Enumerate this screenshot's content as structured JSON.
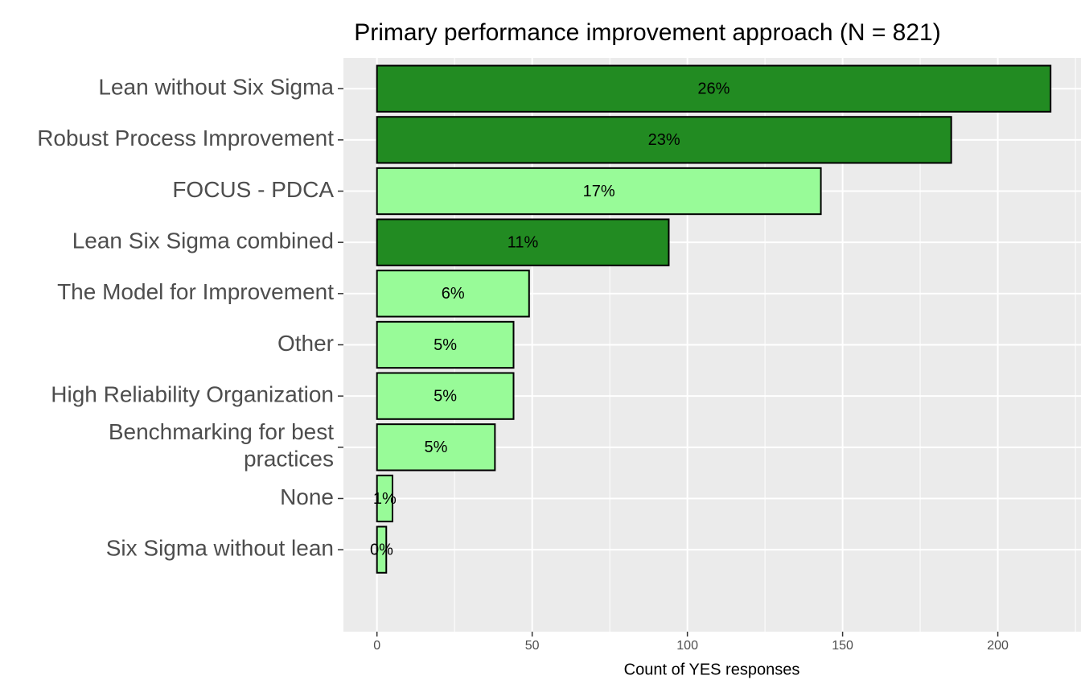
{
  "chart_data": {
    "type": "bar",
    "orientation": "horizontal",
    "title": "Primary performance improvement approach (N = 821)",
    "x_label": "Count of YES responses",
    "categories": [
      "Lean without Six Sigma",
      "Robust Process Improvement",
      "FOCUS - PDCA",
      "Lean Six Sigma combined",
      "The Model for Improvement",
      "Other",
      "High Reliability Organization",
      "Benchmarking for best\npractices",
      "None",
      "Six Sigma without lean"
    ],
    "values": [
      217,
      185,
      143,
      94,
      49,
      44,
      44,
      38,
      5,
      3
    ],
    "value_labels": [
      "26%",
      "23%",
      "17%",
      "11%",
      "6%",
      "5%",
      "5%",
      "5%",
      "1%",
      "0%"
    ],
    "colors": [
      "#228b22",
      "#228b22",
      "#98fb98",
      "#228b22",
      "#98fb98",
      "#98fb98",
      "#98fb98",
      "#98fb98",
      "#98fb98",
      "#98fb98"
    ],
    "xlim": [
      -10.8,
      226.8
    ],
    "xticks": [
      0,
      50,
      100,
      150,
      200
    ],
    "xticks_minor": [
      25,
      75,
      125,
      175,
      225
    ],
    "grid": true
  }
}
